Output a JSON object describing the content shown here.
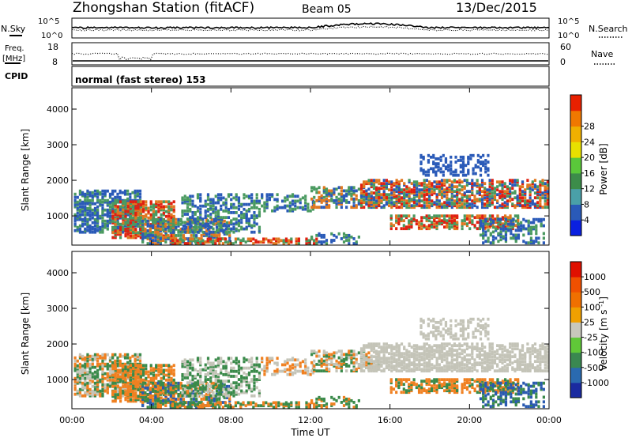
{
  "header": {
    "title": "Zhongshan Station (fitACF)",
    "beam": "Beam 05",
    "date": "13/Dec/2015"
  },
  "strip_nsky": {
    "label": "N.Sky",
    "ytick_top": "10^5",
    "ytick_bottom": "10^0",
    "right_label": "N.Search",
    "right_tick_top": "10^5",
    "right_tick_bottom": "10^0"
  },
  "strip_freq": {
    "label_line1": "Freq.",
    "label_line2": "[MHz]",
    "ytick_top": "18",
    "ytick_bottom": "8",
    "right_label": "Nave",
    "right_tick_top": "60",
    "right_tick_bottom": "0"
  },
  "cpid": {
    "label": "CPID",
    "mode": "normal (fast stereo) 153"
  },
  "chart_data": [
    {
      "type": "heatmap",
      "name": "power",
      "ylabel": "Slant Range [km]",
      "xlabel": "",
      "ylim": [
        180,
        4600
      ],
      "yticks": [
        "1000",
        "2000",
        "3000",
        "4000"
      ],
      "ytick_values": [
        1000,
        2000,
        3000,
        4000
      ],
      "colorbar_label": "Power [dB]",
      "colorbar_ticks": [
        "4",
        "8",
        "12",
        "16",
        "20",
        "24",
        "28"
      ],
      "colorbar_colors": [
        "#0a20e0",
        "#2a5ab8",
        "#4aa0a8",
        "#3c8c4a",
        "#5ac83a",
        "#e8e000",
        "#f0b000",
        "#f07800",
        "#e82000"
      ],
      "colors": {
        "weak": "#2a5ab8",
        "mid": "#4a9a60",
        "strong": "#e07820",
        "peak": "#e02010"
      }
    },
    {
      "type": "heatmap",
      "name": "velocity",
      "ylabel": "Slant Range [km]",
      "xlabel": "Time UT",
      "ylim": [
        180,
        4600
      ],
      "yticks": [
        "1000",
        "2000",
        "3000",
        "4000"
      ],
      "ytick_values": [
        1000,
        2000,
        3000,
        4000
      ],
      "xlim_hours": [
        0,
        24
      ],
      "xticks": [
        "00:00",
        "04:00",
        "08:00",
        "12:00",
        "16:00",
        "20:00",
        "00:00"
      ],
      "xtick_hours": [
        0,
        4,
        8,
        12,
        16,
        20,
        24
      ],
      "colorbar_label": "Velocity [m s^-1]",
      "colorbar_ticks": [
        "1000",
        "500",
        "100",
        "25",
        "-25",
        "-100",
        "-500",
        "-1000"
      ],
      "colorbar_colors": [
        "#1a2aa0",
        "#2a6ab0",
        "#3a8850",
        "#60c838",
        "#c8c8bc",
        "#f0a000",
        "#f07000",
        "#f05000",
        "#e01000"
      ],
      "colors": {
        "grey": "#c4c4b8",
        "orange": "#f08020",
        "green": "#3a8a4a",
        "blue": "#2a5ab0"
      }
    }
  ]
}
